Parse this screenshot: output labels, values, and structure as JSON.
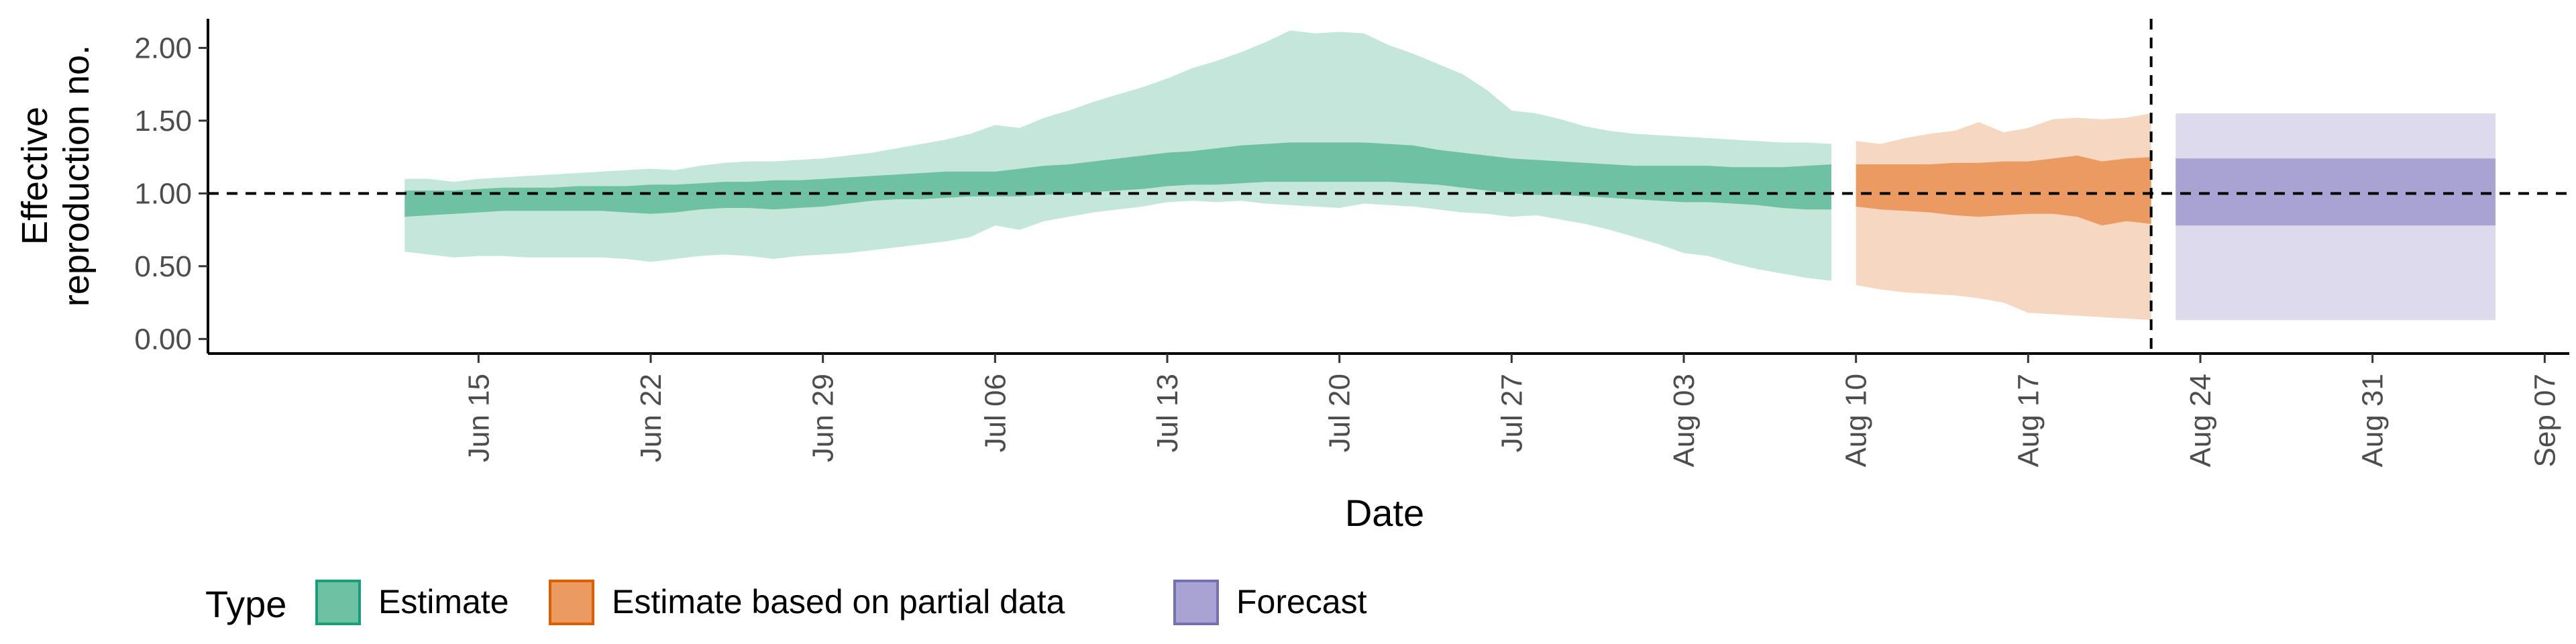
{
  "chart_data": {
    "type": "area",
    "title": "",
    "xlabel": "Date",
    "ylabel_lines": [
      "Effective",
      "reproduction no."
    ],
    "ylim": [
      -0.1,
      2.2
    ],
    "yticks": [
      0,
      0.5,
      1,
      1.5,
      2
    ],
    "ytick_labels": [
      "0.00",
      "0.50",
      "1.00",
      "1.50",
      "2.00"
    ],
    "xlim": [
      "2020-06-04",
      "2020-09-08"
    ],
    "xticks": [
      "2020-06-15",
      "2020-06-22",
      "2020-06-29",
      "2020-07-06",
      "2020-07-13",
      "2020-07-20",
      "2020-07-27",
      "2020-08-03",
      "2020-08-10",
      "2020-08-17",
      "2020-08-24",
      "2020-08-31",
      "2020-09-07"
    ],
    "xtick_labels": [
      "Jun 15",
      "Jun 22",
      "Jun 29",
      "Jul 06",
      "Jul 13",
      "Jul 20",
      "Jul 27",
      "Aug 03",
      "Aug 10",
      "Aug 17",
      "Aug 24",
      "Aug 31",
      "Sep 07"
    ],
    "hline": 1.0,
    "vline_date": "2020-08-22",
    "grid": false,
    "legend": {
      "title": "Type",
      "position": "bottom-left",
      "entries": [
        {
          "label": "Estimate",
          "fill": "#6fc1a4",
          "border": "#1b9e77"
        },
        {
          "label": "Estimate based on partial data",
          "fill": "#eb9b62",
          "border": "#d95f02"
        },
        {
          "label": "Forecast",
          "fill": "#a9a3d4",
          "border": "#7570b3"
        }
      ]
    },
    "series": [
      {
        "name": "Estimate",
        "color_outer": "#c5e6da",
        "color_inner": "#6fc1a4",
        "x": [
          "2020-06-12",
          "2020-06-13",
          "2020-06-14",
          "2020-06-15",
          "2020-06-16",
          "2020-06-17",
          "2020-06-18",
          "2020-06-19",
          "2020-06-20",
          "2020-06-21",
          "2020-06-22",
          "2020-06-23",
          "2020-06-24",
          "2020-06-25",
          "2020-06-26",
          "2020-06-27",
          "2020-06-28",
          "2020-06-29",
          "2020-06-30",
          "2020-07-01",
          "2020-07-02",
          "2020-07-03",
          "2020-07-04",
          "2020-07-05",
          "2020-07-06",
          "2020-07-07",
          "2020-07-08",
          "2020-07-09",
          "2020-07-10",
          "2020-07-11",
          "2020-07-12",
          "2020-07-13",
          "2020-07-14",
          "2020-07-15",
          "2020-07-16",
          "2020-07-17",
          "2020-07-18",
          "2020-07-19",
          "2020-07-20",
          "2020-07-21",
          "2020-07-22",
          "2020-07-23",
          "2020-07-24",
          "2020-07-25",
          "2020-07-26",
          "2020-07-27",
          "2020-07-28",
          "2020-07-29",
          "2020-07-30",
          "2020-07-31",
          "2020-08-01",
          "2020-08-02",
          "2020-08-03",
          "2020-08-04",
          "2020-08-05",
          "2020-08-06",
          "2020-08-07",
          "2020-08-08",
          "2020-08-09"
        ],
        "upper_90": [
          1.1,
          1.1,
          1.08,
          1.1,
          1.11,
          1.12,
          1.13,
          1.14,
          1.15,
          1.16,
          1.17,
          1.16,
          1.19,
          1.21,
          1.22,
          1.22,
          1.23,
          1.24,
          1.26,
          1.28,
          1.31,
          1.34,
          1.37,
          1.41,
          1.47,
          1.45,
          1.52,
          1.57,
          1.63,
          1.68,
          1.73,
          1.79,
          1.86,
          1.91,
          1.97,
          2.04,
          2.12,
          2.1,
          2.11,
          2.1,
          2.02,
          1.96,
          1.89,
          1.82,
          1.71,
          1.57,
          1.55,
          1.51,
          1.46,
          1.43,
          1.41,
          1.4,
          1.39,
          1.38,
          1.37,
          1.36,
          1.35,
          1.35,
          1.34
        ],
        "upper_50": [
          1.02,
          1.02,
          1.02,
          1.03,
          1.04,
          1.04,
          1.04,
          1.05,
          1.05,
          1.05,
          1.06,
          1.06,
          1.07,
          1.08,
          1.08,
          1.09,
          1.09,
          1.1,
          1.11,
          1.12,
          1.13,
          1.14,
          1.15,
          1.15,
          1.15,
          1.17,
          1.19,
          1.2,
          1.22,
          1.24,
          1.26,
          1.28,
          1.29,
          1.31,
          1.33,
          1.34,
          1.35,
          1.35,
          1.35,
          1.35,
          1.34,
          1.33,
          1.3,
          1.28,
          1.26,
          1.24,
          1.23,
          1.22,
          1.21,
          1.2,
          1.19,
          1.19,
          1.19,
          1.19,
          1.18,
          1.18,
          1.18,
          1.19,
          1.2
        ],
        "lower_50": [
          0.84,
          0.85,
          0.86,
          0.87,
          0.88,
          0.88,
          0.88,
          0.88,
          0.88,
          0.87,
          0.86,
          0.87,
          0.89,
          0.9,
          0.9,
          0.89,
          0.9,
          0.91,
          0.93,
          0.95,
          0.96,
          0.96,
          0.97,
          0.98,
          0.98,
          0.98,
          0.99,
          1.0,
          1.01,
          1.02,
          1.03,
          1.05,
          1.06,
          1.06,
          1.07,
          1.08,
          1.08,
          1.08,
          1.08,
          1.08,
          1.08,
          1.07,
          1.06,
          1.04,
          1.02,
          1.0,
          0.99,
          0.99,
          0.98,
          0.97,
          0.96,
          0.95,
          0.94,
          0.94,
          0.93,
          0.92,
          0.9,
          0.89,
          0.89
        ],
        "lower_90": [
          0.6,
          0.58,
          0.56,
          0.57,
          0.57,
          0.56,
          0.56,
          0.56,
          0.56,
          0.55,
          0.53,
          0.55,
          0.57,
          0.58,
          0.57,
          0.55,
          0.57,
          0.58,
          0.59,
          0.61,
          0.63,
          0.65,
          0.67,
          0.7,
          0.78,
          0.75,
          0.81,
          0.84,
          0.87,
          0.89,
          0.91,
          0.94,
          0.95,
          0.94,
          0.95,
          0.93,
          0.92,
          0.91,
          0.9,
          0.93,
          0.92,
          0.91,
          0.89,
          0.87,
          0.86,
          0.84,
          0.85,
          0.82,
          0.79,
          0.75,
          0.7,
          0.65,
          0.59,
          0.57,
          0.52,
          0.48,
          0.45,
          0.42,
          0.4
        ]
      },
      {
        "name": "Estimate based on partial data",
        "color_outer": "#f5d7c2",
        "color_inner": "#eb9b62",
        "x": [
          "2020-08-10",
          "2020-08-11",
          "2020-08-12",
          "2020-08-13",
          "2020-08-14",
          "2020-08-15",
          "2020-08-16",
          "2020-08-17",
          "2020-08-18",
          "2020-08-19",
          "2020-08-20",
          "2020-08-21",
          "2020-08-22"
        ],
        "upper_90": [
          1.36,
          1.34,
          1.38,
          1.41,
          1.43,
          1.49,
          1.42,
          1.45,
          1.51,
          1.52,
          1.51,
          1.52,
          1.55
        ],
        "upper_50": [
          1.2,
          1.2,
          1.2,
          1.2,
          1.21,
          1.21,
          1.22,
          1.22,
          1.24,
          1.26,
          1.22,
          1.24,
          1.25
        ],
        "lower_50": [
          0.91,
          0.89,
          0.88,
          0.87,
          0.85,
          0.84,
          0.85,
          0.86,
          0.86,
          0.84,
          0.78,
          0.81,
          0.79
        ],
        "lower_90": [
          0.37,
          0.34,
          0.32,
          0.31,
          0.3,
          0.28,
          0.25,
          0.18,
          0.17,
          0.16,
          0.15,
          0.14,
          0.13
        ]
      },
      {
        "name": "Forecast",
        "color_outer": "#dcdaec",
        "color_inner": "#a9a3d4",
        "x": [
          "2020-08-23",
          "2020-09-05"
        ],
        "upper_90": [
          1.55,
          1.55
        ],
        "upper_50": [
          1.24,
          1.24
        ],
        "lower_50": [
          0.78,
          0.78
        ],
        "lower_90": [
          0.13,
          0.13
        ]
      }
    ]
  }
}
